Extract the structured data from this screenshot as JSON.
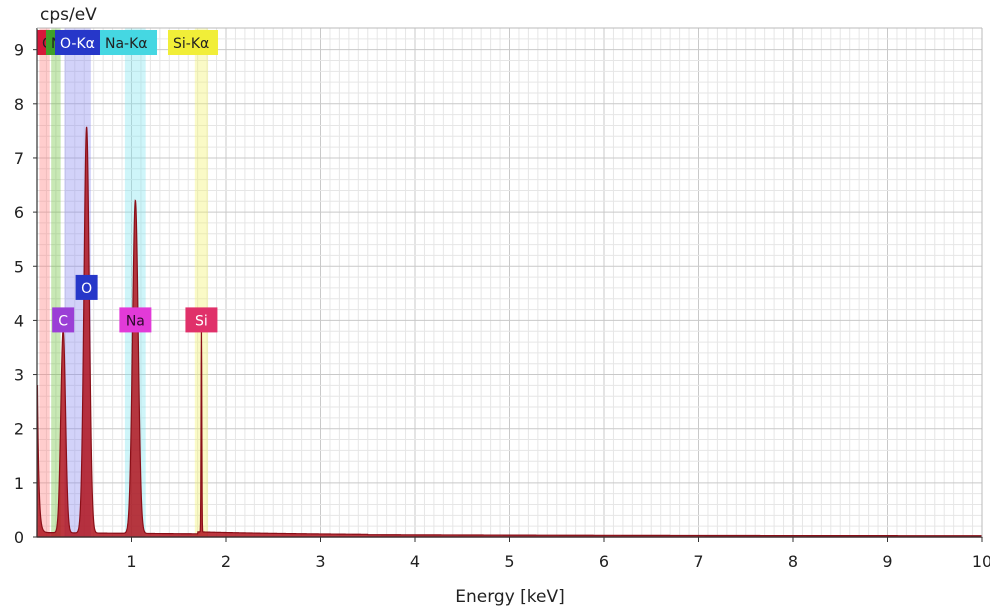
{
  "chart_data": {
    "type": "area",
    "title": "",
    "xlabel": "Energy [keV]",
    "ylabel": "cps/eV",
    "xlim": [
      0,
      10
    ],
    "ylim": [
      0,
      9.4
    ],
    "x_ticks": [
      1,
      2,
      3,
      4,
      5,
      6,
      7,
      8,
      9,
      10
    ],
    "y_ticks": [
      0,
      1,
      2,
      3,
      4,
      5,
      6,
      7,
      8,
      9
    ],
    "grid": true,
    "spectrum_color": "#b0141e",
    "background_level": 0.05,
    "peaks": [
      {
        "element": "C",
        "energy": 0.277,
        "cps": 3.8,
        "label_y": 4.0,
        "color": "#9b3fd6"
      },
      {
        "element": "O",
        "energy": 0.525,
        "cps": 7.55,
        "label_y": 4.6,
        "color": "#2637c9"
      },
      {
        "element": "Na",
        "energy": 1.041,
        "cps": 6.2,
        "label_y": 4.0,
        "color": "#e23ad8"
      },
      {
        "element": "Si",
        "energy": 1.74,
        "cps": 3.8,
        "label_y": 4.0,
        "color": "#e0316a"
      }
    ],
    "line_bands": [
      {
        "name": "C-Kα",
        "energy": 0.08,
        "width": 0.11,
        "color": "#ff7b7b",
        "label": "C",
        "label_color": "#d6183a"
      },
      {
        "name": "N-Kα",
        "energy": 0.2,
        "width": 0.1,
        "color": "#6ec23c",
        "label": "N",
        "label_color": "#3fa02a"
      },
      {
        "name": "O-Kα",
        "energy": 0.43,
        "width": 0.28,
        "color": "#8a8af0",
        "label": "O-Kα",
        "label_color": "#2637c9"
      },
      {
        "name": "Na-Kα",
        "energy": 1.04,
        "width": 0.22,
        "color": "#7fe6ee",
        "label": "Na-Kα",
        "label_color": "#45d7e2"
      },
      {
        "name": "Si-Kα",
        "energy": 1.74,
        "width": 0.14,
        "color": "#f3f36a",
        "label": "Si-Kα",
        "label_color": "#f1ee38"
      }
    ]
  }
}
